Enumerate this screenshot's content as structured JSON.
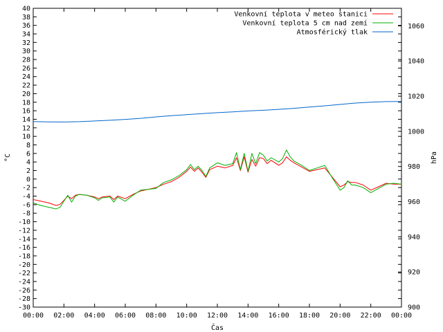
{
  "chart_data": {
    "type": "line",
    "title": "",
    "xlabel": "Čas",
    "ylabel": "°C",
    "y2label": "hPa",
    "xlim": [
      0,
      24
    ],
    "ylim": [
      -30,
      40
    ],
    "y2lim": [
      900,
      1070
    ],
    "grid": false,
    "legend_position": "top-right",
    "x_ticks": [
      "00:00",
      "02:00",
      "04:00",
      "06:00",
      "08:00",
      "10:00",
      "12:00",
      "14:00",
      "16:00",
      "18:00",
      "20:00",
      "22:00",
      "00:00"
    ],
    "y_ticks": [
      "40",
      "38",
      "36",
      "34",
      "32",
      "30",
      "28",
      "26",
      "24",
      "22",
      "20",
      "18",
      "16",
      "14",
      "12",
      "10",
      "8",
      "6",
      "4",
      "2",
      "0",
      "-2",
      "-4",
      "-6",
      "-8",
      "-10",
      "-12",
      "-14",
      "-16",
      "-18",
      "-20",
      "-22",
      "-24",
      "-26",
      "-28",
      "-30"
    ],
    "y2_ticks": [
      "1060",
      "1040",
      "1020",
      "1000",
      "980",
      "960",
      "940",
      "920",
      "900"
    ],
    "series": [
      {
        "name": "Venkovní teplota v meteo stanici",
        "color": "#ff0000",
        "axis": "y",
        "x": [
          0,
          0.5,
          1,
          1.5,
          1.75,
          2,
          2.25,
          2.5,
          2.75,
          3,
          3.5,
          4,
          4.25,
          4.5,
          5,
          5.25,
          5.5,
          6,
          6.5,
          7,
          7.5,
          8,
          8.5,
          9,
          9.5,
          10,
          10.25,
          10.5,
          10.75,
          11,
          11.25,
          11.5,
          12,
          12.5,
          13,
          13.25,
          13.5,
          13.75,
          14,
          14.25,
          14.5,
          14.75,
          15,
          15.25,
          15.5,
          16,
          16.25,
          16.5,
          16.75,
          17,
          17.5,
          18,
          18.5,
          19,
          19.5,
          20,
          20.25,
          20.5,
          20.75,
          21,
          21.5,
          22,
          22.5,
          23,
          23.5,
          24
        ],
        "y": [
          -4.8,
          -5.2,
          -5.6,
          -6.2,
          -5.9,
          -5.0,
          -4.0,
          -4.6,
          -3.8,
          -3.6,
          -3.8,
          -4.2,
          -4.6,
          -4.2,
          -4.0,
          -4.8,
          -4.0,
          -4.6,
          -3.6,
          -2.8,
          -2.4,
          -2.0,
          -1.2,
          -0.6,
          0.4,
          1.8,
          2.8,
          1.8,
          2.6,
          1.6,
          0.4,
          2.2,
          3.0,
          2.6,
          3.2,
          5.0,
          2.0,
          5.2,
          1.6,
          4.6,
          3.0,
          5.0,
          4.8,
          3.6,
          4.4,
          3.2,
          3.8,
          5.2,
          4.4,
          3.8,
          2.8,
          1.8,
          2.2,
          2.6,
          0.4,
          -1.8,
          -1.4,
          -0.6,
          -0.8,
          -0.8,
          -1.4,
          -2.6,
          -1.8,
          -1.0,
          -1.2,
          -1.2
        ]
      },
      {
        "name": "Venkovní teplota 5 cm nad zemí",
        "color": "#00b000",
        "axis": "y",
        "x": [
          0,
          0.5,
          1,
          1.5,
          1.75,
          2,
          2.25,
          2.5,
          2.75,
          3,
          3.5,
          4,
          4.25,
          4.5,
          5,
          5.25,
          5.5,
          6,
          6.5,
          7,
          7.5,
          8,
          8.5,
          9,
          9.5,
          10,
          10.25,
          10.5,
          10.75,
          11,
          11.25,
          11.5,
          12,
          12.5,
          13,
          13.25,
          13.5,
          13.75,
          14,
          14.25,
          14.5,
          14.75,
          15,
          15.25,
          15.5,
          16,
          16.25,
          16.5,
          16.75,
          17,
          17.5,
          18,
          18.5,
          19,
          19.5,
          20,
          20.25,
          20.5,
          20.75,
          21,
          21.5,
          22,
          22.5,
          23,
          23.5,
          24
        ],
        "y": [
          -5.6,
          -6.2,
          -6.6,
          -7.0,
          -6.6,
          -5.2,
          -3.8,
          -5.4,
          -4.0,
          -3.6,
          -3.8,
          -4.4,
          -5.0,
          -4.4,
          -4.2,
          -5.4,
          -4.2,
          -5.2,
          -3.8,
          -2.6,
          -2.4,
          -2.2,
          -0.8,
          -0.2,
          0.8,
          2.2,
          3.4,
          2.2,
          3.0,
          2.0,
          0.6,
          2.6,
          3.8,
          3.2,
          3.6,
          6.2,
          2.2,
          6.0,
          1.8,
          6.0,
          3.6,
          6.2,
          5.6,
          4.2,
          5.0,
          4.0,
          4.8,
          6.8,
          5.2,
          4.2,
          3.2,
          2.0,
          2.6,
          3.2,
          0.2,
          -2.6,
          -2.0,
          -0.4,
          -1.4,
          -1.4,
          -2.0,
          -3.2,
          -2.2,
          -1.2,
          -1.0,
          -1.2
        ]
      },
      {
        "name": "Atmosférický tlak",
        "color": "#0066cc",
        "axis": "y2",
        "x": [
          0,
          1,
          2,
          3,
          4,
          5,
          6,
          7,
          8,
          9,
          10,
          11,
          12,
          13,
          14,
          15,
          16,
          17,
          18,
          19,
          20,
          21,
          22,
          23,
          24
        ],
        "y": [
          1005.6,
          1005.4,
          1005.3,
          1005.5,
          1005.9,
          1006.3,
          1006.8,
          1007.4,
          1008.2,
          1008.9,
          1009.5,
          1010.1,
          1010.6,
          1011.1,
          1011.6,
          1012.0,
          1012.5,
          1013.1,
          1013.8,
          1014.5,
          1015.3,
          1016.1,
          1016.6,
          1016.9,
          1017.0
        ]
      }
    ]
  }
}
